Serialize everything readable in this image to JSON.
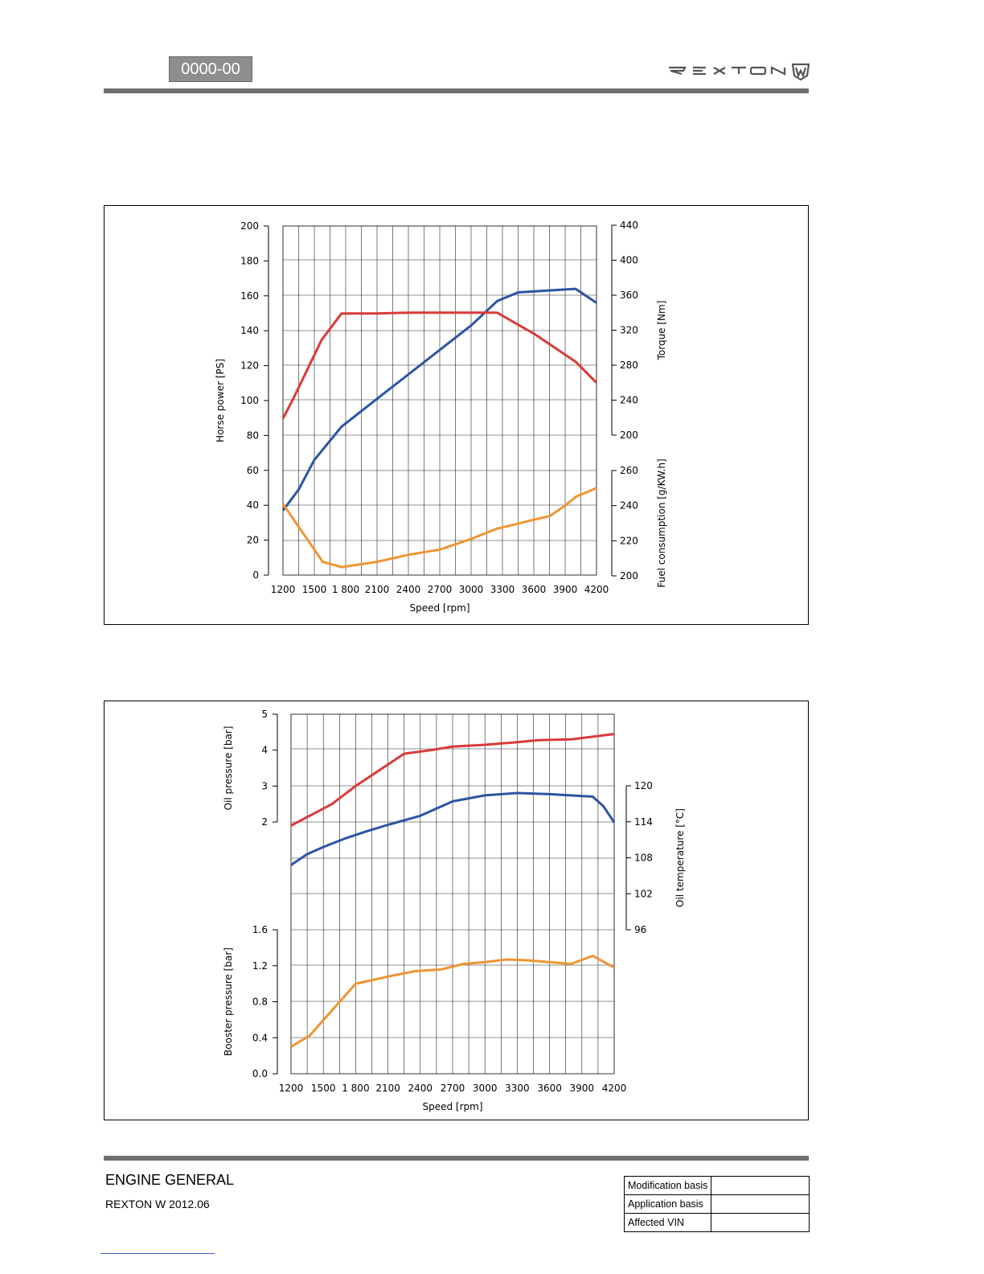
{
  "header": {
    "section_code": "0000-00",
    "brand_logo": "REXTON"
  },
  "chart_data": [
    {
      "type": "line",
      "x": [
        1200,
        1500,
        1800,
        2100,
        2400,
        2700,
        3000,
        3300,
        3600,
        3900,
        4200
      ],
      "x_tick_labels": [
        "1200",
        "1500",
        "1 800",
        "2100",
        "2400",
        "2700",
        "3000",
        "3300",
        "3600",
        "3900",
        "4200"
      ],
      "xlabel": "Speed [rpm]",
      "xlim": [
        1200,
        4200
      ],
      "axes": {
        "horse_power": {
          "label": "Horse power [PS]",
          "range": [
            0,
            200
          ],
          "ticks": [
            "0",
            "20",
            "40",
            "60",
            "80",
            "100",
            "120",
            "140",
            "160",
            "180",
            "200"
          ]
        },
        "torque": {
          "label": "Torque [Nm]",
          "range": [
            200,
            440
          ],
          "ticks": [
            "200",
            "240",
            "280",
            "320",
            "360",
            "400",
            "440"
          ]
        },
        "fuel": {
          "label": "Fuel consumption [g/KW.h]",
          "range": [
            200,
            260
          ],
          "ticks": [
            "200",
            "220",
            "240",
            "260"
          ]
        }
      },
      "grid": true,
      "series": [
        {
          "axis": "horse_power",
          "color": "#2b55a3",
          "x": [
            1200,
            1350,
            1500,
            1760,
            2100,
            2400,
            2700,
            3000,
            3250,
            3450,
            4000,
            4200
          ],
          "y": [
            37,
            49,
            66,
            85,
            101,
            115,
            129,
            143,
            157,
            162,
            164,
            156
          ]
        },
        {
          "axis": "torque",
          "color": "#d93a38",
          "x": [
            1200,
            1300,
            1570,
            1760,
            2100,
            2400,
            2700,
            3000,
            3250,
            3600,
            4000,
            4200
          ],
          "y": [
            219,
            242,
            309,
            339,
            339,
            340,
            340,
            340,
            340,
            316,
            284,
            260
          ]
        },
        {
          "axis": "fuel",
          "color": "#ef9533",
          "x": [
            1200,
            1580,
            1760,
            2100,
            2400,
            2700,
            3000,
            3250,
            3400,
            3600,
            3750,
            3900,
            4000,
            4200
          ],
          "y": [
            241,
            208,
            205,
            208,
            212,
            215,
            221,
            227,
            229,
            232,
            234,
            240,
            245,
            250
          ]
        }
      ]
    },
    {
      "type": "line",
      "x": [
        1200,
        1500,
        1800,
        2100,
        2400,
        2700,
        3000,
        3300,
        3600,
        3900,
        4200
      ],
      "x_tick_labels": [
        "1200",
        "1500",
        "1 800",
        "2100",
        "2400",
        "2700",
        "3000",
        "3300",
        "3600",
        "3900",
        "4200"
      ],
      "xlabel": "Speed [rpm]",
      "xlim": [
        1200,
        4200
      ],
      "axes": {
        "oil_pressure": {
          "label": "Oil pressure [bar]",
          "range": [
            2,
            5
          ],
          "ticks": [
            "2",
            "3",
            "4",
            "5"
          ]
        },
        "oil_temperature": {
          "label": "Oil temperature [°C]",
          "range": [
            96,
            120
          ],
          "ticks": [
            "96",
            "102",
            "108",
            "114",
            "120"
          ]
        },
        "booster_pressure": {
          "label": "Booster pressure [bar]",
          "range": [
            0,
            1.6
          ],
          "ticks": [
            "0.0",
            "0.4",
            "0.8",
            "1.2",
            "1.6"
          ]
        }
      },
      "grid": true,
      "series": [
        {
          "axis": "oil_pressure",
          "color": "#d93a38",
          "x": [
            1200,
            1580,
            1800,
            2100,
            2250,
            2500,
            2700,
            3000,
            3300,
            3500,
            3800,
            4200
          ],
          "y": [
            1.9,
            2.5,
            3.0,
            3.6,
            3.9,
            4.0,
            4.1,
            4.15,
            4.22,
            4.28,
            4.3,
            4.45
          ]
        },
        {
          "axis": "oil_temperature",
          "color": "#2b55a3",
          "x": [
            1200,
            1350,
            1500,
            1700,
            1900,
            2100,
            2400,
            2700,
            3000,
            3300,
            3600,
            3900,
            4000,
            4100,
            4200
          ],
          "y": [
            106.8,
            108.6,
            109.8,
            111.2,
            112.4,
            113.5,
            115.0,
            117.4,
            118.4,
            118.8,
            118.6,
            118.3,
            118.2,
            116.6,
            113.9
          ]
        },
        {
          "axis": "booster_pressure",
          "color": "#ef9533",
          "x": [
            1200,
            1370,
            1800,
            2100,
            2350,
            2600,
            2800,
            3000,
            3200,
            3400,
            3600,
            3800,
            4000,
            4200
          ],
          "y": [
            0.3,
            0.42,
            1.0,
            1.08,
            1.14,
            1.16,
            1.22,
            1.24,
            1.27,
            1.26,
            1.24,
            1.22,
            1.31,
            1.18
          ]
        }
      ]
    }
  ],
  "footer": {
    "title": "ENGINE GENERAL",
    "subtitle": "REXTON W 2012.06",
    "meta_rows": [
      {
        "label": "Modification basis",
        "value": ""
      },
      {
        "label": "Application basis",
        "value": ""
      },
      {
        "label": "Affected VIN",
        "value": ""
      }
    ]
  }
}
